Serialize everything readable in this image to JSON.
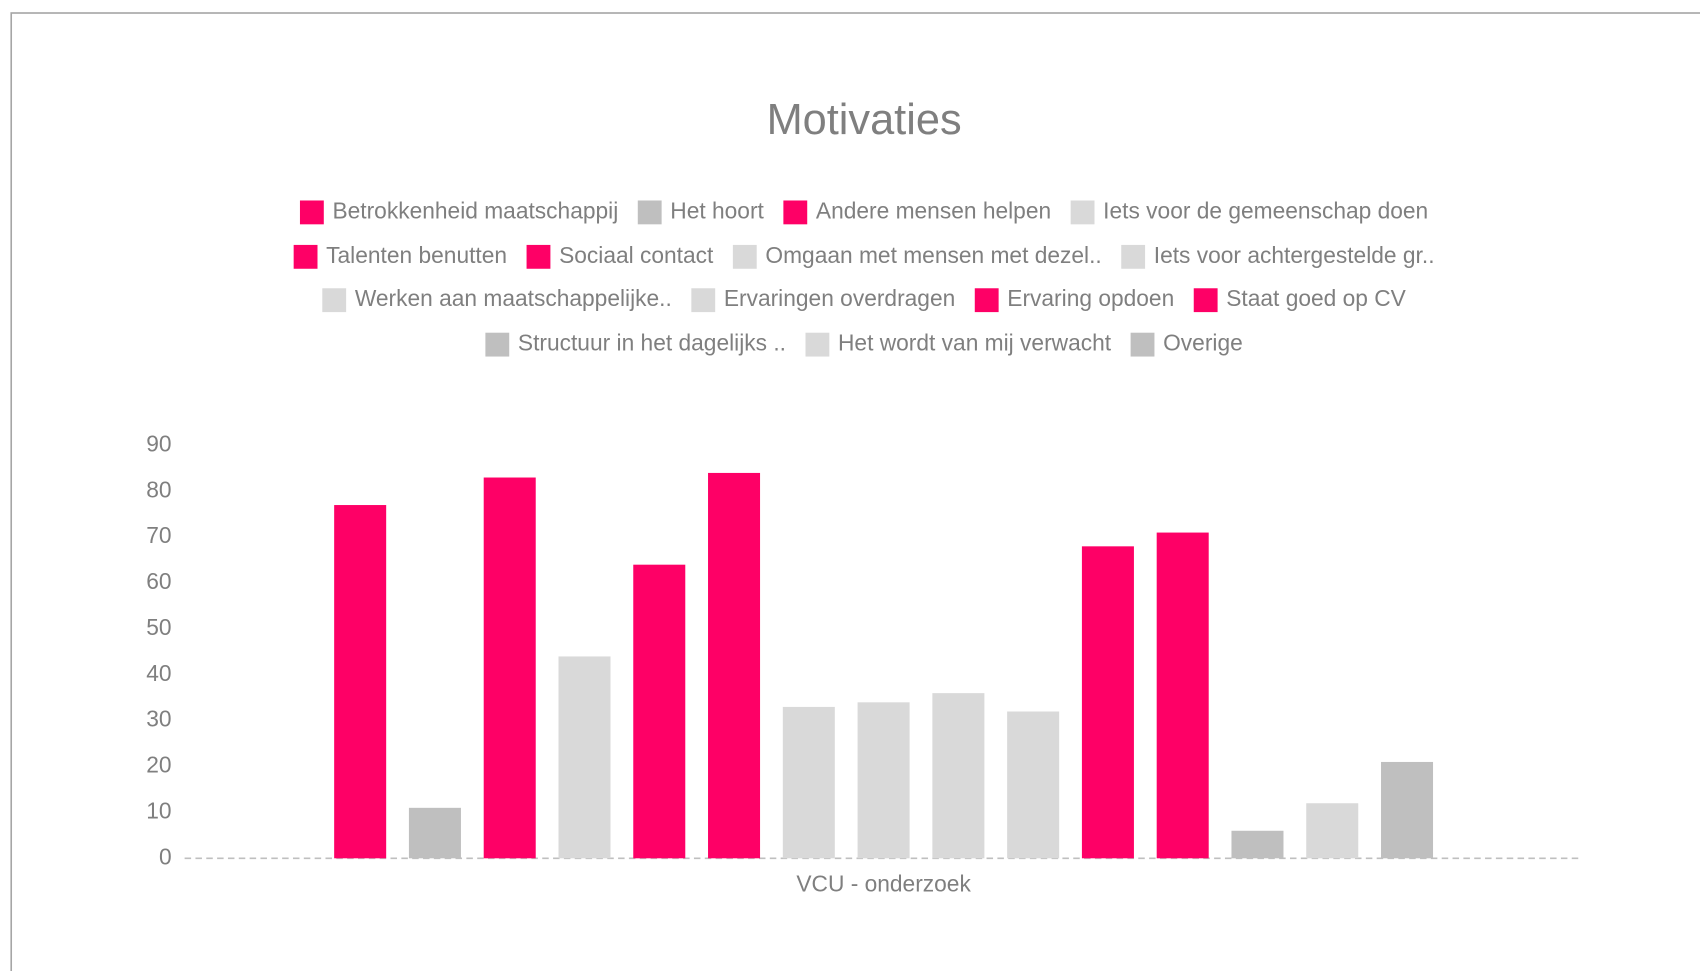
{
  "chart_data": {
    "type": "bar",
    "title": "Motivaties",
    "categories": [
      "VCU - onderzoek"
    ],
    "series": [
      {
        "name": "Betrokkenheid maatschappij",
        "color": "#fe0066",
        "values": [
          77
        ]
      },
      {
        "name": "Het hoort",
        "color": "#bfbfbf",
        "values": [
          11
        ]
      },
      {
        "name": "Andere mensen helpen",
        "color": "#fe0066",
        "values": [
          83
        ]
      },
      {
        "name": "Iets voor de gemeenschap doen",
        "color": "#d9d9d9",
        "values": [
          44
        ]
      },
      {
        "name": "Talenten benutten",
        "color": "#fe0066",
        "values": [
          64
        ]
      },
      {
        "name": "Sociaal contact",
        "color": "#fe0066",
        "values": [
          84
        ]
      },
      {
        "name": "Omgaan met mensen met dezel..",
        "color": "#d9d9d9",
        "values": [
          33
        ]
      },
      {
        "name": "Iets voor achtergestelde gr..",
        "color": "#d9d9d9",
        "values": [
          34
        ]
      },
      {
        "name": "Werken aan maatschappelijke..",
        "color": "#d9d9d9",
        "values": [
          36
        ]
      },
      {
        "name": "Ervaringen overdragen",
        "color": "#d9d9d9",
        "values": [
          32
        ]
      },
      {
        "name": "Ervaring opdoen",
        "color": "#fe0066",
        "values": [
          68
        ]
      },
      {
        "name": "Staat goed op CV",
        "color": "#fe0066",
        "values": [
          71
        ]
      },
      {
        "name": "Structuur in het dagelijks ..",
        "color": "#bfbfbf",
        "values": [
          6
        ]
      },
      {
        "name": "Het wordt van mij verwacht",
        "color": "#d9d9d9",
        "values": [
          12
        ]
      },
      {
        "name": "Overige",
        "color": "#bfbfbf",
        "values": [
          21
        ]
      }
    ],
    "ylim": [
      0,
      90
    ],
    "yticks": [
      0,
      10,
      20,
      30,
      40,
      50,
      60,
      70,
      80,
      90
    ],
    "grid": false,
    "legend": "top"
  }
}
